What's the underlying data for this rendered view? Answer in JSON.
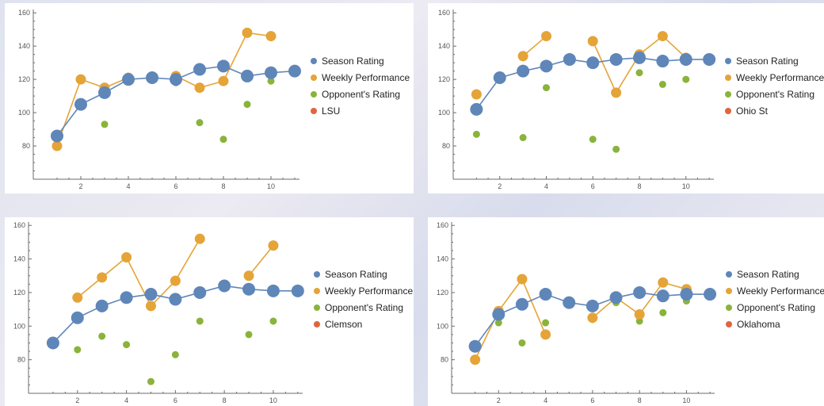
{
  "colors": {
    "season": "#5f86b8",
    "weekly": "#e5a437",
    "opponent": "#8ab33b",
    "team": "#e0653d",
    "axis": "#6b6b6b"
  },
  "chart_data": [
    {
      "type": "line",
      "team": "LSU",
      "xlim": [
        0,
        11.2
      ],
      "ylim": [
        60,
        162
      ],
      "x_ticks": [
        2,
        4,
        6,
        8,
        10
      ],
      "y_ticks": [
        80,
        100,
        120,
        140,
        160
      ],
      "series": [
        {
          "name": "Season Rating",
          "marker": "large",
          "line": true,
          "points": [
            [
              1,
              86
            ],
            [
              2,
              105
            ],
            [
              3,
              112
            ],
            [
              4,
              120
            ],
            [
              5,
              121
            ],
            [
              6,
              120
            ],
            [
              7,
              126
            ],
            [
              8,
              128
            ],
            [
              9,
              122
            ],
            [
              10,
              124
            ],
            [
              11,
              125
            ]
          ]
        },
        {
          "name": "Weekly Performance",
          "marker": "medium",
          "line": true,
          "points": [
            [
              1,
              80
            ],
            [
              2,
              120
            ],
            [
              3,
              115
            ],
            [
              4,
              121
            ],
            [
              5,
              null
            ],
            [
              6,
              122
            ],
            [
              7,
              115
            ],
            [
              8,
              119
            ],
            [
              9,
              148
            ],
            [
              10,
              146
            ]
          ]
        },
        {
          "name": "Opponent's Rating",
          "marker": "small",
          "line": false,
          "points": [
            [
              2,
              106
            ],
            [
              3,
              93
            ],
            [
              4,
              119
            ],
            [
              6,
              118
            ],
            [
              7,
              94
            ],
            [
              8,
              84
            ],
            [
              9,
              105
            ],
            [
              10,
              119
            ]
          ]
        },
        {
          "name": "LSU",
          "marker": "small",
          "line": false,
          "points": []
        }
      ]
    },
    {
      "type": "line",
      "team": "Ohio St",
      "xlim": [
        0,
        11.2
      ],
      "ylim": [
        60,
        162
      ],
      "x_ticks": [
        2,
        4,
        6,
        8,
        10
      ],
      "y_ticks": [
        80,
        100,
        120,
        140,
        160
      ],
      "series": [
        {
          "name": "Season Rating",
          "marker": "large",
          "line": true,
          "points": [
            [
              1,
              102
            ],
            [
              2,
              121
            ],
            [
              3,
              125
            ],
            [
              4,
              128
            ],
            [
              5,
              132
            ],
            [
              6,
              130
            ],
            [
              7,
              132
            ],
            [
              8,
              133
            ],
            [
              9,
              131
            ],
            [
              10,
              132
            ],
            [
              11,
              132
            ]
          ]
        },
        {
          "name": "Weekly Performance",
          "marker": "medium",
          "line": true,
          "points": [
            [
              1,
              111
            ],
            [
              2,
              null
            ],
            [
              3,
              134
            ],
            [
              4,
              146
            ],
            [
              5,
              null
            ],
            [
              6,
              143
            ],
            [
              7,
              112
            ],
            [
              8,
              135
            ],
            [
              9,
              146
            ],
            [
              10,
              133
            ]
          ]
        },
        {
          "name": "Opponent's Rating",
          "marker": "small",
          "line": false,
          "points": [
            [
              1,
              87
            ],
            [
              3,
              85
            ],
            [
              4,
              115
            ],
            [
              6,
              84
            ],
            [
              7,
              78
            ],
            [
              8,
              124
            ],
            [
              9,
              117
            ],
            [
              10,
              120
            ]
          ]
        },
        {
          "name": "Ohio St",
          "marker": "small",
          "line": false,
          "points": []
        }
      ]
    },
    {
      "type": "line",
      "team": "Clemson",
      "xlim": [
        0,
        11.2
      ],
      "ylim": [
        60,
        162
      ],
      "x_ticks": [
        2,
        4,
        6,
        8,
        10
      ],
      "y_ticks": [
        80,
        100,
        120,
        140,
        160
      ],
      "series": [
        {
          "name": "Season Rating",
          "marker": "large",
          "line": true,
          "points": [
            [
              1,
              90
            ],
            [
              2,
              105
            ],
            [
              3,
              112
            ],
            [
              4,
              117
            ],
            [
              5,
              119
            ],
            [
              6,
              116
            ],
            [
              7,
              120
            ],
            [
              8,
              124
            ],
            [
              9,
              122
            ],
            [
              10,
              121
            ],
            [
              11,
              121
            ]
          ]
        },
        {
          "name": "Weekly Performance",
          "marker": "medium",
          "line": true,
          "points": [
            [
              1,
              null
            ],
            [
              2,
              117
            ],
            [
              3,
              129
            ],
            [
              4,
              141
            ],
            [
              5,
              112
            ],
            [
              6,
              127
            ],
            [
              7,
              152
            ],
            [
              8,
              null
            ],
            [
              9,
              130
            ],
            [
              10,
              148
            ]
          ]
        },
        {
          "name": "Opponent's Rating",
          "marker": "small",
          "line": false,
          "points": [
            [
              2,
              86
            ],
            [
              3,
              94
            ],
            [
              4,
              89
            ],
            [
              5,
              67
            ],
            [
              6,
              83
            ],
            [
              7,
              103
            ],
            [
              9,
              95
            ],
            [
              10,
              103
            ]
          ]
        },
        {
          "name": "Clemson",
          "marker": "small",
          "line": false,
          "points": []
        }
      ]
    },
    {
      "type": "line",
      "team": "Oklahoma",
      "xlim": [
        0,
        11.2
      ],
      "ylim": [
        60,
        162
      ],
      "x_ticks": [
        2,
        4,
        6,
        8,
        10
      ],
      "y_ticks": [
        80,
        100,
        120,
        140,
        160
      ],
      "series": [
        {
          "name": "Season Rating",
          "marker": "large",
          "line": true,
          "points": [
            [
              1,
              88
            ],
            [
              2,
              107
            ],
            [
              3,
              113
            ],
            [
              4,
              119
            ],
            [
              5,
              114
            ],
            [
              6,
              112
            ],
            [
              7,
              117
            ],
            [
              8,
              120
            ],
            [
              9,
              118
            ],
            [
              10,
              119
            ],
            [
              11,
              119
            ]
          ]
        },
        {
          "name": "Weekly Performance",
          "marker": "medium",
          "line": true,
          "points": [
            [
              1,
              80
            ],
            [
              2,
              109
            ],
            [
              3,
              128
            ],
            [
              4,
              95
            ],
            [
              5,
              null
            ],
            [
              6,
              105
            ],
            [
              7,
              117
            ],
            [
              8,
              107
            ],
            [
              9,
              126
            ],
            [
              10,
              122
            ]
          ]
        },
        {
          "name": "Opponent's Rating",
          "marker": "small",
          "line": false,
          "points": [
            [
              2,
              102
            ],
            [
              3,
              90
            ],
            [
              4,
              102
            ],
            [
              6,
              104
            ],
            [
              7,
              114
            ],
            [
              8,
              103
            ],
            [
              9,
              108
            ],
            [
              10,
              115
            ]
          ]
        },
        {
          "name": "Oklahoma",
          "marker": "small",
          "line": false,
          "points": []
        }
      ]
    }
  ]
}
